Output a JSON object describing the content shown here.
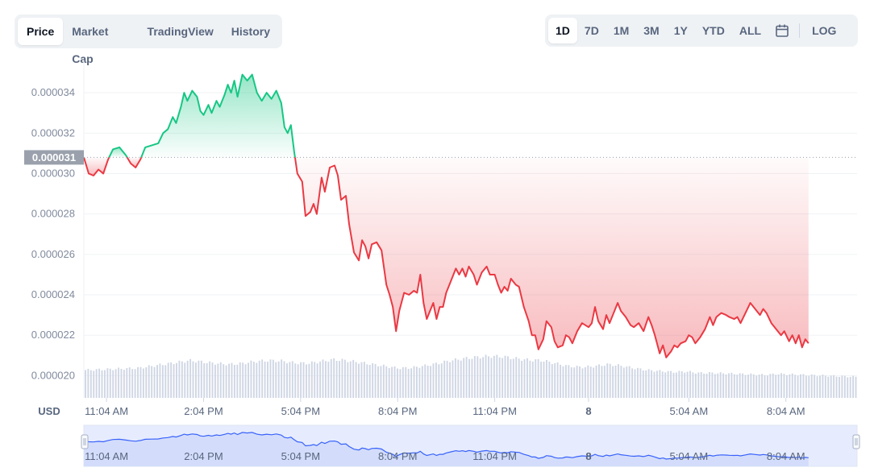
{
  "tabs": [
    {
      "label": "Price",
      "active": true
    },
    {
      "label": "Market Cap",
      "active": false
    },
    {
      "label": "TradingView",
      "active": false
    },
    {
      "label": "History",
      "active": false
    }
  ],
  "ranges": [
    {
      "label": "1D",
      "active": true
    },
    {
      "label": "7D",
      "active": false
    },
    {
      "label": "1M",
      "active": false
    },
    {
      "label": "3M",
      "active": false
    },
    {
      "label": "1Y",
      "active": false
    },
    {
      "label": "YTD",
      "active": false
    },
    {
      "label": "ALL",
      "active": false
    }
  ],
  "calendar_icon": "calendar-icon",
  "log_label": "LOG",
  "colors": {
    "up": "#16c784",
    "down": "#ea3943",
    "volume": "#cfd6e4",
    "navigator_line": "#3861fb",
    "navigator_fill": "#e6ecfd",
    "grid": "#eff2f5",
    "axis_text": "#808a9d",
    "baseline_label_bg": "#9aa1ac"
  },
  "chart_data": {
    "type": "line",
    "currency_label": "USD",
    "baseline_label": "0.000031",
    "baseline": 3.08e-05,
    "ylim": [
      1.89e-05,
      3.56e-05
    ],
    "y_ticks": [
      {
        "value": 3.4e-05,
        "label": "0.000034"
      },
      {
        "value": 3.2e-05,
        "label": "0.000032"
      },
      {
        "value": 3e-05,
        "label": "0.000030"
      },
      {
        "value": 2.8e-05,
        "label": "0.000028"
      },
      {
        "value": 2.6e-05,
        "label": "0.000026"
      },
      {
        "value": 2.4e-05,
        "label": "0.000024"
      },
      {
        "value": 2.2e-05,
        "label": "0.000022"
      },
      {
        "value": 2e-05,
        "label": "0.000020"
      }
    ],
    "x_ticks": [
      {
        "t": 1.1,
        "label": "11:04 AM"
      },
      {
        "t": 4.1,
        "label": "2:04 PM"
      },
      {
        "t": 7.1,
        "label": "5:04 PM"
      },
      {
        "t": 10.1,
        "label": "8:04 PM"
      },
      {
        "t": 13.1,
        "label": "11:04 PM"
      },
      {
        "t": 16.0,
        "label": "8"
      },
      {
        "t": 19.1,
        "label": "5:04 AM"
      },
      {
        "t": 22.1,
        "label": "8:04 AM"
      }
    ],
    "x_range_hours": [
      0.4,
      24.3
    ],
    "price": [
      [
        0.4,
        3.08e-05
      ],
      [
        0.55,
        3e-05
      ],
      [
        0.7,
        2.99e-05
      ],
      [
        0.85,
        3.02e-05
      ],
      [
        1.0,
        3e-05
      ],
      [
        1.15,
        3.07e-05
      ],
      [
        1.3,
        3.12e-05
      ],
      [
        1.5,
        3.13e-05
      ],
      [
        1.7,
        3.09e-05
      ],
      [
        1.85,
        3.05e-05
      ],
      [
        2.0,
        3.03e-05
      ],
      [
        2.15,
        3.07e-05
      ],
      [
        2.3,
        3.13e-05
      ],
      [
        2.5,
        3.14e-05
      ],
      [
        2.7,
        3.15e-05
      ],
      [
        2.85,
        3.2e-05
      ],
      [
        3.0,
        3.22e-05
      ],
      [
        3.15,
        3.28e-05
      ],
      [
        3.25,
        3.25e-05
      ],
      [
        3.4,
        3.33e-05
      ],
      [
        3.5,
        3.4e-05
      ],
      [
        3.6,
        3.36e-05
      ],
      [
        3.75,
        3.41e-05
      ],
      [
        3.9,
        3.38e-05
      ],
      [
        4.0,
        3.31e-05
      ],
      [
        4.1,
        3.29e-05
      ],
      [
        4.25,
        3.34e-05
      ],
      [
        4.35,
        3.3e-05
      ],
      [
        4.5,
        3.36e-05
      ],
      [
        4.6,
        3.33e-05
      ],
      [
        4.75,
        3.39e-05
      ],
      [
        4.85,
        3.44e-05
      ],
      [
        4.95,
        3.4e-05
      ],
      [
        5.05,
        3.46e-05
      ],
      [
        5.15,
        3.38e-05
      ],
      [
        5.3,
        3.49e-05
      ],
      [
        5.45,
        3.46e-05
      ],
      [
        5.6,
        3.49e-05
      ],
      [
        5.75,
        3.4e-05
      ],
      [
        5.9,
        3.36e-05
      ],
      [
        6.05,
        3.4e-05
      ],
      [
        6.2,
        3.37e-05
      ],
      [
        6.35,
        3.41e-05
      ],
      [
        6.5,
        3.35e-05
      ],
      [
        6.6,
        3.23e-05
      ],
      [
        6.7,
        3.2e-05
      ],
      [
        6.8,
        3.24e-05
      ],
      [
        6.9,
        3.11e-05
      ],
      [
        7.0,
        3e-05
      ],
      [
        7.15,
        2.96e-05
      ],
      [
        7.25,
        2.79e-05
      ],
      [
        7.4,
        2.81e-05
      ],
      [
        7.5,
        2.85e-05
      ],
      [
        7.6,
        2.8e-05
      ],
      [
        7.75,
        2.98e-05
      ],
      [
        7.85,
        2.91e-05
      ],
      [
        8.0,
        3.03e-05
      ],
      [
        8.15,
        3.04e-05
      ],
      [
        8.25,
        2.99e-05
      ],
      [
        8.35,
        2.87e-05
      ],
      [
        8.5,
        2.89e-05
      ],
      [
        8.6,
        2.75e-05
      ],
      [
        8.75,
        2.61e-05
      ],
      [
        8.9,
        2.57e-05
      ],
      [
        9.0,
        2.67e-05
      ],
      [
        9.1,
        2.64e-05
      ],
      [
        9.2,
        2.58e-05
      ],
      [
        9.3,
        2.65e-05
      ],
      [
        9.45,
        2.66e-05
      ],
      [
        9.6,
        2.62e-05
      ],
      [
        9.75,
        2.45e-05
      ],
      [
        9.85,
        2.4e-05
      ],
      [
        9.95,
        2.34e-05
      ],
      [
        10.05,
        2.22e-05
      ],
      [
        10.15,
        2.32e-05
      ],
      [
        10.3,
        2.41e-05
      ],
      [
        10.45,
        2.4e-05
      ],
      [
        10.6,
        2.42e-05
      ],
      [
        10.7,
        2.41e-05
      ],
      [
        10.8,
        2.5e-05
      ],
      [
        10.9,
        2.36e-05
      ],
      [
        11.0,
        2.28e-05
      ],
      [
        11.1,
        2.32e-05
      ],
      [
        11.2,
        2.36e-05
      ],
      [
        11.3,
        2.28e-05
      ],
      [
        11.4,
        2.34e-05
      ],
      [
        11.5,
        2.34e-05
      ],
      [
        11.6,
        2.41e-05
      ],
      [
        11.75,
        2.47e-05
      ],
      [
        11.9,
        2.53e-05
      ],
      [
        12.0,
        2.5e-05
      ],
      [
        12.1,
        2.53e-05
      ],
      [
        12.2,
        2.49e-05
      ],
      [
        12.3,
        2.54e-05
      ],
      [
        12.45,
        2.5e-05
      ],
      [
        12.55,
        2.45e-05
      ],
      [
        12.7,
        2.51e-05
      ],
      [
        12.85,
        2.54e-05
      ],
      [
        12.95,
        2.5e-05
      ],
      [
        13.1,
        2.5e-05
      ],
      [
        13.2,
        2.45e-05
      ],
      [
        13.3,
        2.41e-05
      ],
      [
        13.4,
        2.44e-05
      ],
      [
        13.5,
        2.42e-05
      ],
      [
        13.6,
        2.48e-05
      ],
      [
        13.75,
        2.45e-05
      ],
      [
        13.85,
        2.44e-05
      ],
      [
        14.0,
        2.34e-05
      ],
      [
        14.15,
        2.27e-05
      ],
      [
        14.25,
        2.2e-05
      ],
      [
        14.35,
        2.2e-05
      ],
      [
        14.45,
        2.13e-05
      ],
      [
        14.6,
        2.18e-05
      ],
      [
        14.7,
        2.27e-05
      ],
      [
        14.85,
        2.24e-05
      ],
      [
        14.95,
        2.17e-05
      ],
      [
        15.05,
        2.14e-05
      ],
      [
        15.2,
        2.15e-05
      ],
      [
        15.3,
        2.2e-05
      ],
      [
        15.4,
        2.19e-05
      ],
      [
        15.5,
        2.16e-05
      ],
      [
        15.65,
        2.22e-05
      ],
      [
        15.8,
        2.26e-05
      ],
      [
        16.0,
        2.24e-05
      ],
      [
        16.1,
        2.26e-05
      ],
      [
        16.2,
        2.34e-05
      ],
      [
        16.3,
        2.27e-05
      ],
      [
        16.45,
        2.23e-05
      ],
      [
        16.55,
        2.3e-05
      ],
      [
        16.65,
        2.26e-05
      ],
      [
        16.8,
        2.32e-05
      ],
      [
        16.9,
        2.36e-05
      ],
      [
        17.0,
        2.32e-05
      ],
      [
        17.15,
        2.29e-05
      ],
      [
        17.3,
        2.25e-05
      ],
      [
        17.4,
        2.24e-05
      ],
      [
        17.55,
        2.26e-05
      ],
      [
        17.7,
        2.22e-05
      ],
      [
        17.85,
        2.29e-05
      ],
      [
        17.95,
        2.25e-05
      ],
      [
        18.05,
        2.2e-05
      ],
      [
        18.2,
        2.11e-05
      ],
      [
        18.3,
        2.15e-05
      ],
      [
        18.4,
        2.09e-05
      ],
      [
        18.55,
        2.12e-05
      ],
      [
        18.65,
        2.15e-05
      ],
      [
        18.75,
        2.14e-05
      ],
      [
        18.85,
        2.16e-05
      ],
      [
        19.0,
        2.17e-05
      ],
      [
        19.1,
        2.2e-05
      ],
      [
        19.2,
        2.19e-05
      ],
      [
        19.3,
        2.16e-05
      ],
      [
        19.45,
        2.19e-05
      ],
      [
        19.6,
        2.23e-05
      ],
      [
        19.75,
        2.29e-05
      ],
      [
        19.85,
        2.25e-05
      ],
      [
        19.95,
        2.29e-05
      ],
      [
        20.1,
        2.31e-05
      ],
      [
        20.25,
        2.3e-05
      ],
      [
        20.35,
        2.29e-05
      ],
      [
        20.5,
        2.28e-05
      ],
      [
        20.6,
        2.29e-05
      ],
      [
        20.7,
        2.26e-05
      ],
      [
        20.85,
        2.31e-05
      ],
      [
        21.0,
        2.36e-05
      ],
      [
        21.15,
        2.33e-05
      ],
      [
        21.3,
        2.3e-05
      ],
      [
        21.4,
        2.33e-05
      ],
      [
        21.5,
        2.31e-05
      ],
      [
        21.65,
        2.26e-05
      ],
      [
        21.8,
        2.23e-05
      ],
      [
        21.95,
        2.2e-05
      ],
      [
        22.05,
        2.22e-05
      ],
      [
        22.2,
        2.17e-05
      ],
      [
        22.3,
        2.2e-05
      ],
      [
        22.4,
        2.16e-05
      ],
      [
        22.5,
        2.2e-05
      ],
      [
        22.6,
        2.14e-05
      ],
      [
        22.7,
        2.18e-05
      ],
      [
        22.8,
        2.16e-05
      ]
    ],
    "volume_level": [
      0.58,
      0.59,
      0.6,
      0.61,
      0.62,
      0.66,
      0.7,
      0.74,
      0.78,
      0.75,
      0.72,
      0.7,
      0.72,
      0.76,
      0.78,
      0.77,
      0.73,
      0.72,
      0.76,
      0.8,
      0.78,
      0.74,
      0.7,
      0.66,
      0.62,
      0.63,
      0.67,
      0.72,
      0.78,
      0.82,
      0.85,
      0.87,
      0.86,
      0.82,
      0.79,
      0.78,
      0.72,
      0.66,
      0.64,
      0.66,
      0.7,
      0.67,
      0.62,
      0.58,
      0.56,
      0.54,
      0.55,
      0.52,
      0.52,
      0.51,
      0.5,
      0.49,
      0.48,
      0.5,
      0.49,
      0.48,
      0.47,
      0.46,
      0.45,
      0.44
    ],
    "navigator": {
      "x_ticks": [
        "11:04 AM",
        "2:04 PM",
        "5:04 PM",
        "8:04 PM",
        "11:04 PM",
        "8",
        "5:04 AM",
        "8:04 AM"
      ]
    }
  }
}
